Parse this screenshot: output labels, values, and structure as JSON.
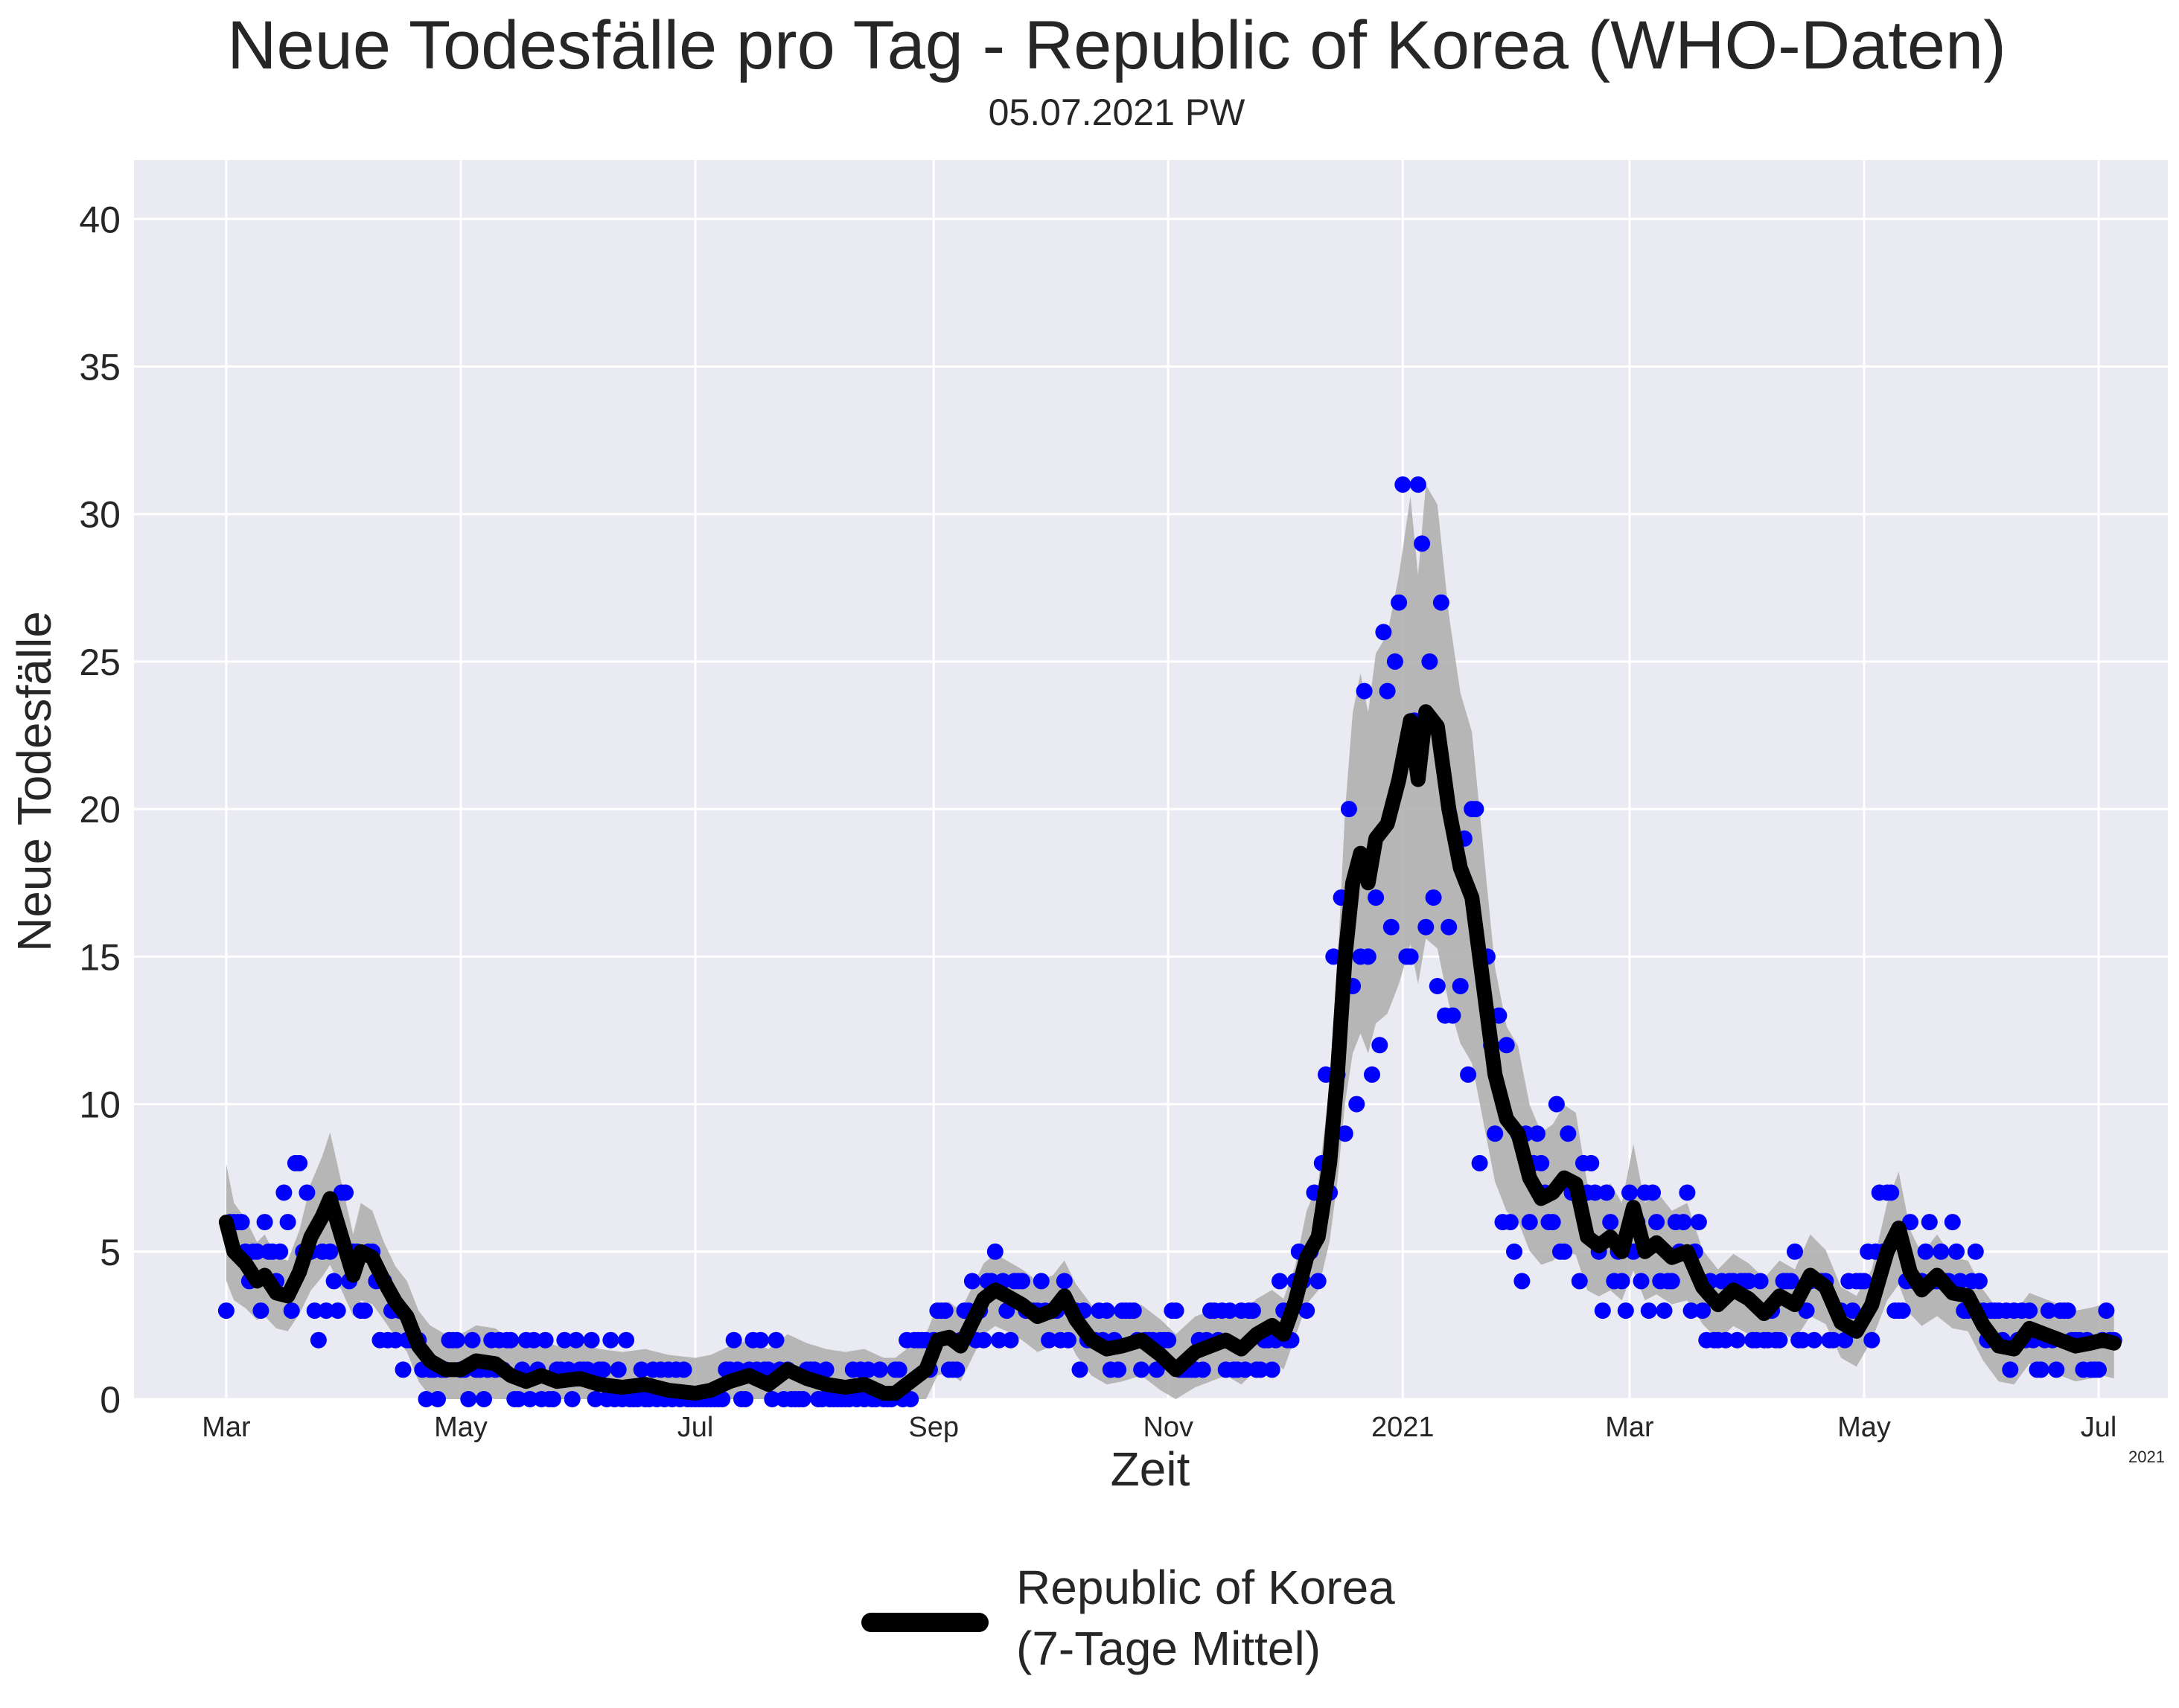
{
  "chart_data": {
    "type": "line",
    "title": "Neue Todesfälle pro Tag - Republic of Korea (WHO-Daten)",
    "subtitle": "05.07.2021 PW",
    "xlabel": "Zeit",
    "ylabel": "Neue Todesfälle",
    "x_offset_label": "2021",
    "x_tick_labels": [
      "Mar",
      "May",
      "Jul",
      "Sep",
      "Nov",
      "2021",
      "Mar",
      "May",
      "Jul"
    ],
    "x_tick_dates": [
      "2020-03-01",
      "2020-05-01",
      "2020-07-01",
      "2020-09-01",
      "2020-11-01",
      "2021-01-01",
      "2021-03-01",
      "2021-05-01",
      "2021-07-01"
    ],
    "xlim": [
      "2020-02-06",
      "2021-07-19"
    ],
    "ylim": [
      0,
      42
    ],
    "y_ticks": [
      0,
      5,
      10,
      15,
      20,
      25,
      30,
      35,
      40
    ],
    "grid": true,
    "legend": {
      "position": "bottom-center",
      "label_lines": [
        "Republic of Korea",
        "(7-Tage Mittel)"
      ]
    },
    "colors": {
      "background": "#eaeaf2",
      "grid": "#ffffff",
      "points": "#0000ff",
      "line": "#000000",
      "band": "#b0b0b0"
    },
    "daily_series": {
      "name": "daily",
      "start_date": "2020-03-01",
      "end_date": "2021-07-05",
      "anchors": [
        [
          "2020-03-01",
          5
        ],
        [
          "2020-03-04",
          4
        ],
        [
          "2020-03-08",
          4
        ],
        [
          "2020-03-13",
          4
        ],
        [
          "2020-03-20",
          6
        ],
        [
          "2020-03-25",
          4
        ],
        [
          "2020-03-31",
          5
        ],
        [
          "2020-04-07",
          4
        ],
        [
          "2020-04-15",
          2
        ],
        [
          "2020-04-22",
          1
        ],
        [
          "2020-05-01",
          1
        ],
        [
          "2020-05-10",
          1
        ],
        [
          "2020-05-20",
          1
        ],
        [
          "2020-06-01",
          0.5
        ],
        [
          "2020-06-20",
          0.5
        ],
        [
          "2020-07-01",
          0.2
        ],
        [
          "2020-07-15",
          0.8
        ],
        [
          "2020-08-01",
          0.5
        ],
        [
          "2020-08-20",
          0.3
        ],
        [
          "2020-08-25",
          1
        ],
        [
          "2020-09-01",
          2
        ],
        [
          "2020-09-07",
          2
        ],
        [
          "2020-09-15",
          3.5
        ],
        [
          "2020-09-25",
          3
        ],
        [
          "2020-10-01",
          3
        ],
        [
          "2020-10-05",
          3.5
        ],
        [
          "2020-10-10",
          2
        ],
        [
          "2020-10-20",
          2
        ],
        [
          "2020-11-01",
          1.5
        ],
        [
          "2020-11-10",
          2
        ],
        [
          "2020-11-20",
          2
        ],
        [
          "2020-11-30",
          2.5
        ],
        [
          "2020-12-05",
          4
        ],
        [
          "2020-12-10",
          6
        ],
        [
          "2020-12-15",
          13
        ],
        [
          "2020-12-20",
          17
        ],
        [
          "2020-12-25",
          20
        ],
        [
          "2020-12-30",
          21
        ],
        [
          "2021-01-03",
          23
        ],
        [
          "2021-01-08",
          22
        ],
        [
          "2021-01-13",
          19
        ],
        [
          "2021-01-18",
          17
        ],
        [
          "2021-01-23",
          12
        ],
        [
          "2021-01-28",
          9
        ],
        [
          "2021-02-02",
          7
        ],
        [
          "2021-02-10",
          7
        ],
        [
          "2021-02-15",
          6
        ],
        [
          "2021-02-25",
          5
        ],
        [
          "2021-03-05",
          5
        ],
        [
          "2021-03-15",
          5
        ],
        [
          "2021-03-25",
          3.5
        ],
        [
          "2021-04-05",
          3
        ],
        [
          "2021-04-15",
          3.5
        ],
        [
          "2021-04-25",
          2.5
        ],
        [
          "2021-05-01",
          3
        ],
        [
          "2021-05-07",
          6
        ],
        [
          "2021-05-15",
          4
        ],
        [
          "2021-05-25",
          4
        ],
        [
          "2021-06-05",
          2.5
        ],
        [
          "2021-06-15",
          2
        ],
        [
          "2021-06-25",
          2
        ],
        [
          "2021-07-05",
          2
        ]
      ]
    },
    "rolling_mean_series": {
      "name": "Republic of Korea (7-Tage Mittel)",
      "points": [
        [
          "2020-03-01",
          6
        ],
        [
          "2020-03-03",
          5
        ],
        [
          "2020-03-06",
          4.6
        ],
        [
          "2020-03-09",
          4
        ],
        [
          "2020-03-11",
          4.2
        ],
        [
          "2020-03-14",
          3.6
        ],
        [
          "2020-03-17",
          3.5
        ],
        [
          "2020-03-20",
          4.3
        ],
        [
          "2020-03-23",
          5.5
        ],
        [
          "2020-03-26",
          6.2
        ],
        [
          "2020-03-28",
          6.8
        ],
        [
          "2020-03-31",
          5.5
        ],
        [
          "2020-04-03",
          4.2
        ],
        [
          "2020-04-05",
          5
        ],
        [
          "2020-04-08",
          4.8
        ],
        [
          "2020-04-11",
          4
        ],
        [
          "2020-04-14",
          3.3
        ],
        [
          "2020-04-17",
          2.8
        ],
        [
          "2020-04-20",
          1.8
        ],
        [
          "2020-04-23",
          1.3
        ],
        [
          "2020-04-27",
          1
        ],
        [
          "2020-05-01",
          1
        ],
        [
          "2020-05-05",
          1.3
        ],
        [
          "2020-05-10",
          1.2
        ],
        [
          "2020-05-14",
          0.8
        ],
        [
          "2020-05-18",
          0.6
        ],
        [
          "2020-05-22",
          0.8
        ],
        [
          "2020-05-26",
          0.6
        ],
        [
          "2020-06-01",
          0.7
        ],
        [
          "2020-06-06",
          0.5
        ],
        [
          "2020-06-12",
          0.4
        ],
        [
          "2020-06-18",
          0.5
        ],
        [
          "2020-06-24",
          0.3
        ],
        [
          "2020-07-01",
          0.2
        ],
        [
          "2020-07-05",
          0.3
        ],
        [
          "2020-07-10",
          0.6
        ],
        [
          "2020-07-15",
          0.8
        ],
        [
          "2020-07-20",
          0.5
        ],
        [
          "2020-07-25",
          1
        ],
        [
          "2020-07-30",
          0.7
        ],
        [
          "2020-08-04",
          0.5
        ],
        [
          "2020-08-09",
          0.4
        ],
        [
          "2020-08-14",
          0.5
        ],
        [
          "2020-08-19",
          0.2
        ],
        [
          "2020-08-22",
          0.2
        ],
        [
          "2020-08-26",
          0.6
        ],
        [
          "2020-08-30",
          1
        ],
        [
          "2020-09-02",
          2
        ],
        [
          "2020-09-05",
          2.1
        ],
        [
          "2020-09-08",
          1.8
        ],
        [
          "2020-09-11",
          2.6
        ],
        [
          "2020-09-14",
          3.4
        ],
        [
          "2020-09-17",
          3.7
        ],
        [
          "2020-09-20",
          3.5
        ],
        [
          "2020-09-24",
          3.2
        ],
        [
          "2020-09-28",
          2.8
        ],
        [
          "2020-10-02",
          3
        ],
        [
          "2020-10-05",
          3.5
        ],
        [
          "2020-10-08",
          2.7
        ],
        [
          "2020-10-12",
          2
        ],
        [
          "2020-10-16",
          1.7
        ],
        [
          "2020-10-20",
          1.8
        ],
        [
          "2020-10-25",
          2
        ],
        [
          "2020-10-30",
          1.5
        ],
        [
          "2020-11-03",
          1
        ],
        [
          "2020-11-08",
          1.6
        ],
        [
          "2020-11-12",
          1.8
        ],
        [
          "2020-11-16",
          2
        ],
        [
          "2020-11-20",
          1.7
        ],
        [
          "2020-11-24",
          2.2
        ],
        [
          "2020-11-28",
          2.5
        ],
        [
          "2020-12-01",
          2.2
        ],
        [
          "2020-12-04",
          3.3
        ],
        [
          "2020-12-07",
          4.8
        ],
        [
          "2020-12-10",
          5.5
        ],
        [
          "2020-12-13",
          8
        ],
        [
          "2020-12-15",
          11
        ],
        [
          "2020-12-17",
          15
        ],
        [
          "2020-12-19",
          17.5
        ],
        [
          "2020-12-21",
          18.5
        ],
        [
          "2020-12-23",
          17.5
        ],
        [
          "2020-12-25",
          19
        ],
        [
          "2020-12-28",
          19.5
        ],
        [
          "2020-12-31",
          21
        ],
        [
          "2021-01-03",
          23
        ],
        [
          "2021-01-05",
          21
        ],
        [
          "2021-01-07",
          23.3
        ],
        [
          "2021-01-10",
          22.8
        ],
        [
          "2021-01-13",
          20
        ],
        [
          "2021-01-16",
          18
        ],
        [
          "2021-01-19",
          17
        ],
        [
          "2021-01-22",
          14
        ],
        [
          "2021-01-25",
          11
        ],
        [
          "2021-01-28",
          9.5
        ],
        [
          "2021-01-31",
          9
        ],
        [
          "2021-02-03",
          7.5
        ],
        [
          "2021-02-06",
          6.8
        ],
        [
          "2021-02-09",
          7
        ],
        [
          "2021-02-12",
          7.5
        ],
        [
          "2021-02-15",
          7.3
        ],
        [
          "2021-02-18",
          5.5
        ],
        [
          "2021-02-21",
          5.2
        ],
        [
          "2021-02-24",
          5.5
        ],
        [
          "2021-02-27",
          5
        ],
        [
          "2021-03-02",
          6.5
        ],
        [
          "2021-03-05",
          5
        ],
        [
          "2021-03-08",
          5.3
        ],
        [
          "2021-03-12",
          4.8
        ],
        [
          "2021-03-16",
          5
        ],
        [
          "2021-03-20",
          3.8
        ],
        [
          "2021-03-24",
          3.2
        ],
        [
          "2021-03-28",
          3.7
        ],
        [
          "2021-04-01",
          3.4
        ],
        [
          "2021-04-05",
          2.9
        ],
        [
          "2021-04-09",
          3.5
        ],
        [
          "2021-04-13",
          3.2
        ],
        [
          "2021-04-17",
          4.2
        ],
        [
          "2021-04-21",
          3.8
        ],
        [
          "2021-04-25",
          2.6
        ],
        [
          "2021-04-29",
          2.3
        ],
        [
          "2021-05-03",
          3.2
        ],
        [
          "2021-05-07",
          5
        ],
        [
          "2021-05-10",
          5.8
        ],
        [
          "2021-05-13",
          4.3
        ],
        [
          "2021-05-16",
          3.7
        ],
        [
          "2021-05-20",
          4.2
        ],
        [
          "2021-05-24",
          3.6
        ],
        [
          "2021-05-28",
          3.5
        ],
        [
          "2021-06-01",
          2.5
        ],
        [
          "2021-06-05",
          1.8
        ],
        [
          "2021-06-09",
          1.7
        ],
        [
          "2021-06-13",
          2.4
        ],
        [
          "2021-06-17",
          2.2
        ],
        [
          "2021-06-21",
          2
        ],
        [
          "2021-06-25",
          1.8
        ],
        [
          "2021-06-29",
          1.9
        ],
        [
          "2021-07-02",
          2
        ],
        [
          "2021-07-05",
          1.9
        ]
      ]
    },
    "band_halfwidth": 1.2
  }
}
